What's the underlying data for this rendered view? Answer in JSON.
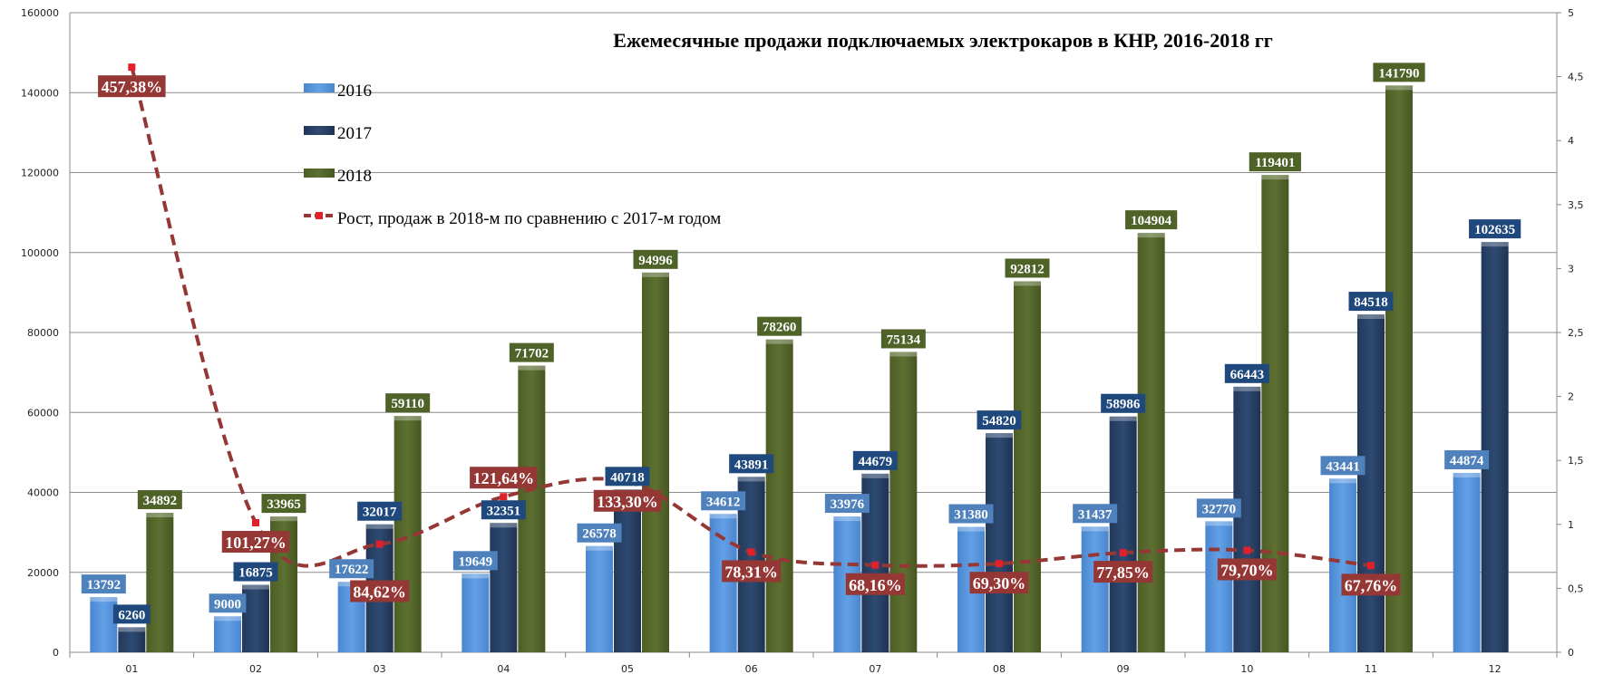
{
  "chart_data": {
    "type": "bar",
    "title": "Ежемесячные продажи подключаемых электрокаров в КНР, 2016-2018 гг",
    "categories": [
      "01",
      "02",
      "03",
      "04",
      "05",
      "06",
      "07",
      "08",
      "09",
      "10",
      "11",
      "12"
    ],
    "ylim": [
      0,
      160000
    ],
    "yticks": [
      "0",
      "20000",
      "40000",
      "60000",
      "80000",
      "100000",
      "120000",
      "140000",
      "160000"
    ],
    "y2lim": [
      0,
      5
    ],
    "y2ticks": [
      "0",
      "0,5",
      "1",
      "1,5",
      "2",
      "2,5",
      "3",
      "3,5",
      "4",
      "4,5",
      "5"
    ],
    "grid": true,
    "legend_position": "top-left",
    "series": [
      {
        "name": "2016",
        "type": "bar",
        "color": "#5b97dc",
        "label_bg": "#4f81bd",
        "values": [
          13792,
          9000,
          17622,
          19649,
          26578,
          34612,
          33976,
          31380,
          31437,
          32770,
          43441,
          44874
        ]
      },
      {
        "name": "2017",
        "type": "bar",
        "color": "#2a4468",
        "label_bg": "#1f497d",
        "values": [
          6260,
          16875,
          32017,
          32351,
          40718,
          43891,
          44679,
          54820,
          58986,
          66443,
          84518,
          102635
        ]
      },
      {
        "name": "2018",
        "type": "bar",
        "color": "#596b2e",
        "label_bg": "#4f6228",
        "values": [
          34892,
          33965,
          59110,
          71702,
          94996,
          78260,
          75134,
          92812,
          104904,
          119401,
          141790,
          null
        ]
      },
      {
        "name": "Рост, продаж в 2018-м по сравнению с 2017-м годом",
        "type": "line",
        "axis": "right",
        "color": "#953735",
        "label_bg": "#953735",
        "values": [
          4.5738,
          1.0127,
          0.8462,
          1.2164,
          1.333,
          0.7831,
          0.6816,
          0.693,
          0.7785,
          0.797,
          0.6776,
          null
        ],
        "labels": [
          "457,38%",
          "101,27%",
          "84,62%",
          "121,64%",
          "133,30%",
          "78,31%",
          "68,16%",
          "69,30%",
          "77,85%",
          "79,70%",
          "67,76%",
          null
        ]
      }
    ]
  }
}
